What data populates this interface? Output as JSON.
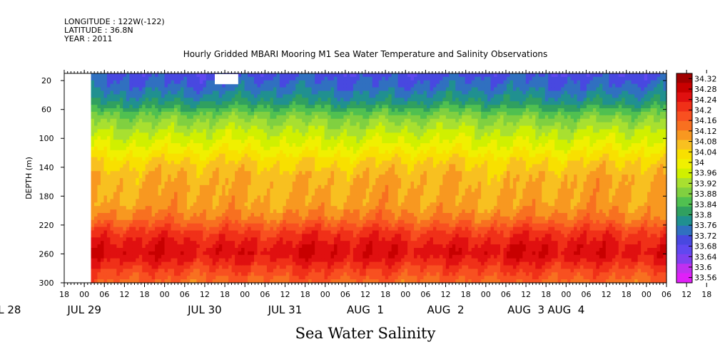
{
  "header": {
    "longitude": "LONGITUDE : 122W(-122)",
    "latitude": "LATITUDE : 36.8N",
    "year": "YEAR : 2011"
  },
  "chart_data": {
    "type": "heatmap",
    "title": "Hourly Gridded MBARI Mooring M1 Sea Water Temperature and Salinity Observations",
    "variable_label": "Sea Water Salinity",
    "ylabel": "DEPTH (m)",
    "y_axis_reversed": true,
    "ylim": [
      300,
      10
    ],
    "y_ticks": [
      20,
      60,
      100,
      140,
      180,
      220,
      260,
      300
    ],
    "x_hour_ticks": [
      "18",
      "00",
      "06",
      "12",
      "18",
      "00",
      "06",
      "12",
      "18",
      "00",
      "06",
      "12",
      "18",
      "00",
      "06",
      "12",
      "18",
      "00",
      "06",
      "12",
      "18",
      "00",
      "06",
      "12",
      "18",
      "00",
      "06",
      "12",
      "18",
      "00",
      "06",
      "12",
      "18"
    ],
    "x_day_labels": [
      "JUL 28",
      "JUL 29",
      "JUL 30",
      "JUL 31",
      "AUG  1",
      "AUG  2",
      "AUG  3",
      "AUG  4"
    ],
    "x_day_label_hour": [
      0,
      0,
      12,
      12,
      12,
      12,
      12,
      0
    ],
    "x_day_label_day": [
      0,
      1,
      2,
      3,
      4,
      5,
      6,
      7
    ],
    "data_start": "JUL 28 02:00",
    "data_end": "AUG 4 18:00",
    "missing_block": {
      "start": "JUL 30 15:00",
      "end": "JUL 30 22:00",
      "depth_range": [
        10,
        25
      ]
    },
    "colorbar": {
      "levels": [
        "34.32",
        "34.28",
        "34.24",
        "34.2",
        "34.16",
        "34.12",
        "34.08",
        "34.04",
        "34",
        "33.96",
        "33.92",
        "33.88",
        "33.84",
        "33.8",
        "33.76",
        "33.72",
        "33.68",
        "33.64",
        "33.6",
        "33.56"
      ],
      "colors": [
        "#a00000",
        "#c80000",
        "#e01010",
        "#f03018",
        "#f85020",
        "#f87020",
        "#f89820",
        "#f8c020",
        "#f8e000",
        "#f0f000",
        "#d0f000",
        "#a8e030",
        "#80d040",
        "#50c050",
        "#30a060",
        "#209090",
        "#3070c0",
        "#4848e0",
        "#6048f0",
        "#8040f0",
        "#c030f0",
        "#e020f8"
      ]
    },
    "profile": [
      {
        "depth": 10,
        "value": 33.66
      },
      {
        "depth": 30,
        "value": 33.7
      },
      {
        "depth": 50,
        "value": 33.76
      },
      {
        "depth": 70,
        "value": 33.86
      },
      {
        "depth": 90,
        "value": 33.92
      },
      {
        "depth": 110,
        "value": 33.97
      },
      {
        "depth": 130,
        "value": 34.03
      },
      {
        "depth": 150,
        "value": 34.07
      },
      {
        "depth": 170,
        "value": 34.08
      },
      {
        "depth": 190,
        "value": 34.09
      },
      {
        "depth": 210,
        "value": 34.13
      },
      {
        "depth": 230,
        "value": 34.21
      },
      {
        "depth": 250,
        "value": 34.26
      },
      {
        "depth": 260,
        "value": 34.27
      },
      {
        "depth": 270,
        "value": 34.24
      },
      {
        "depth": 285,
        "value": 34.19
      },
      {
        "depth": 300,
        "value": 34.15
      }
    ]
  }
}
